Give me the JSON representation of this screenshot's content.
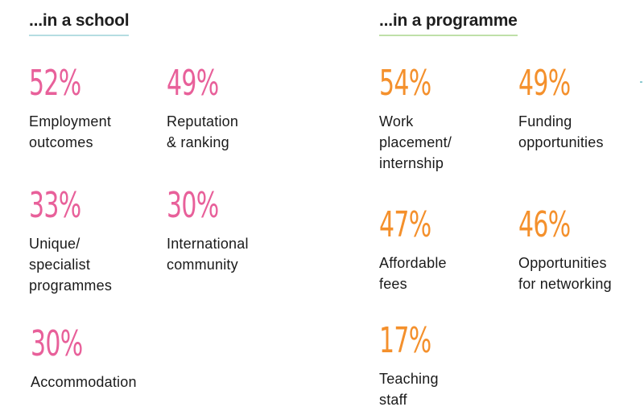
{
  "school": {
    "heading": "...in a school",
    "stats": [
      {
        "value": "52%",
        "label": "Employment\noutcomes"
      },
      {
        "value": "49%",
        "label": "Reputation\n& ranking"
      },
      {
        "value": "33%",
        "label": "Unique/\nspecialist\nprogrammes"
      },
      {
        "value": "30%",
        "label": "International\ncommunity"
      },
      {
        "value": "30%",
        "label": "Accommodation"
      }
    ]
  },
  "programme": {
    "heading": "...in a programme",
    "stats": [
      {
        "value": "54%",
        "label": "Work\nplacement/\ninternship"
      },
      {
        "value": "49%",
        "label": "Funding\nopportunities"
      },
      {
        "value": "47%",
        "label": "Affordable\nfees"
      },
      {
        "value": "46%",
        "label": "Opportunities\nfor networking"
      },
      {
        "value": "17%",
        "label": "Teaching\nstaff"
      }
    ]
  },
  "colors": {
    "school_accent": "#e8609a",
    "programme_accent": "#f4902c",
    "school_underline": "#b5dde2",
    "programme_underline": "#bfe0a8"
  }
}
